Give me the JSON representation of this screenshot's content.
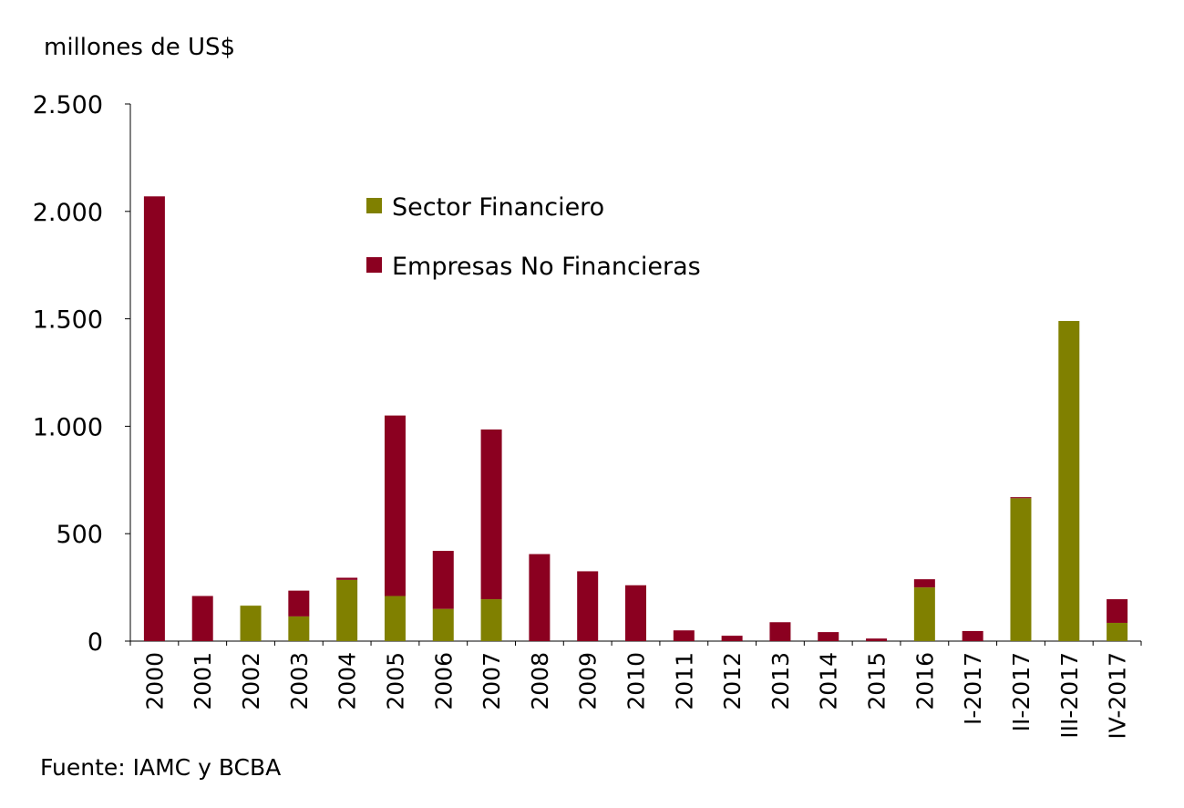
{
  "chart_data": {
    "type": "bar",
    "stacked": true,
    "title": "",
    "ylabel": "millones de US$",
    "xlabel": "",
    "ylim": [
      0,
      2500
    ],
    "yticks": [
      0,
      500,
      1000,
      1500,
      2000,
      2500
    ],
    "ytick_labels": [
      "0",
      "500",
      "1.000",
      "1.500",
      "2.000",
      "2.500"
    ],
    "categories": [
      "2000",
      "2001",
      "2002",
      "2003",
      "2004",
      "2005",
      "2006",
      "2007",
      "2008",
      "2009",
      "2010",
      "2011",
      "2012",
      "2013",
      "2014",
      "2015",
      "2016",
      "I-2017",
      "II-2017",
      "III-2017",
      "IV-2017"
    ],
    "series": [
      {
        "name": "Sector Financiero",
        "color": "#808000",
        "values": [
          0,
          0,
          165,
          115,
          285,
          210,
          150,
          195,
          0,
          0,
          0,
          0,
          0,
          0,
          0,
          0,
          250,
          0,
          665,
          1490,
          85
        ]
      },
      {
        "name": "Empresas No Financieras",
        "color": "#8B0020",
        "values": [
          2070,
          210,
          0,
          120,
          10,
          840,
          270,
          790,
          405,
          325,
          260,
          50,
          25,
          88,
          42,
          12,
          38,
          47,
          5,
          0,
          110
        ]
      }
    ],
    "legend": {
      "position": "top-center",
      "entries": [
        "Sector Financiero",
        "Empresas No Financieras"
      ]
    },
    "grid": false
  },
  "source_note": "Fuente:  IAMC y BCBA"
}
